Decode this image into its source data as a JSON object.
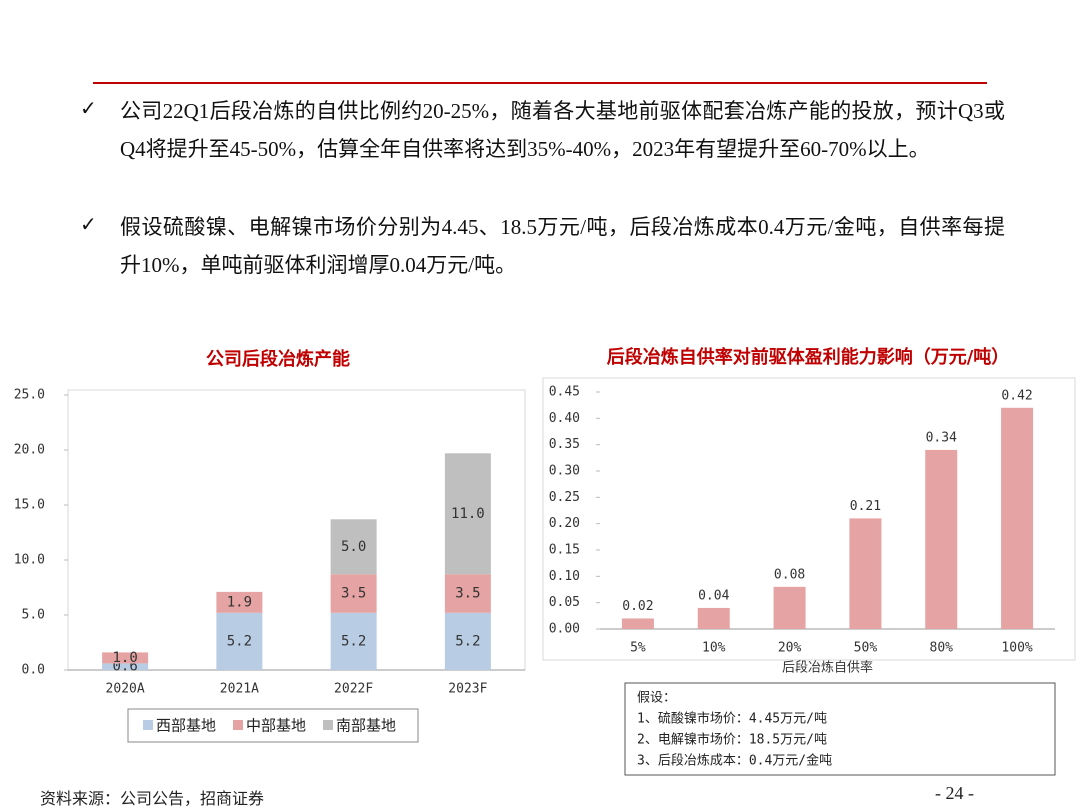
{
  "bullets": [
    "公司22Q1后段冶炼的自供比例约20-25%，随着各大基地前驱体配套冶炼产能的投放，预计Q3或Q4将提升至45-50%，估算全年自供率将达到35%-40%，2023年有望提升至60-70%以上。",
    "假设硫酸镍、电解镍市场价分别为4.45、18.5万元/吨，后段冶炼成本0.4万元/金吨，自供率每提升10%，单吨前驱体利润增厚0.04万元/吨。"
  ],
  "chart_data": [
    {
      "type": "stacked_bar",
      "title": "公司后段冶炼产能",
      "categories": [
        "2020A",
        "2021A",
        "2022F",
        "2023F"
      ],
      "series": [
        {
          "name": "西部基地",
          "color": "#b8cce4",
          "values": [
            0.6,
            5.2,
            5.2,
            5.2
          ],
          "value_labels": [
            "0.6",
            "5.2",
            "5.2",
            "5.2"
          ]
        },
        {
          "name": "中部基地",
          "color": "#e6a3a3",
          "values": [
            1.0,
            1.9,
            3.5,
            3.5
          ],
          "value_labels": [
            "1.0",
            "1.9",
            "3.5",
            "3.5"
          ]
        },
        {
          "name": "南部基地",
          "color": "#bfbfbf",
          "values": [
            null,
            null,
            5.0,
            11.0
          ],
          "value_labels": [
            null,
            null,
            "5.0",
            "11.0"
          ]
        }
      ],
      "ylim": [
        0,
        25
      ],
      "yticks": [
        {
          "value": 0,
          "label": "0.0"
        },
        {
          "value": 5,
          "label": "5.0"
        },
        {
          "value": 10,
          "label": "10.0"
        },
        {
          "value": 15,
          "label": "15.0"
        },
        {
          "value": 20,
          "label": "20.0"
        },
        {
          "value": 25,
          "label": "25.0"
        }
      ],
      "legend": "bottom"
    },
    {
      "type": "bar",
      "title": "后段冶炼自供率对前驱体盈利能力影响（万元/吨）",
      "categories": [
        "5%",
        "10%",
        "20%",
        "50%",
        "80%",
        "100%"
      ],
      "values": [
        0.02,
        0.04,
        0.08,
        0.21,
        0.34,
        0.42
      ],
      "color": "#e6a3a3",
      "x_label": "后段冶炼自供率",
      "ylim": [
        0,
        0.45
      ],
      "yticks": [
        {
          "value": 0,
          "label": "0.00"
        },
        {
          "value": 0.05,
          "label": "0.05"
        },
        {
          "value": 0.1,
          "label": "0.10"
        },
        {
          "value": 0.15,
          "label": "0.15"
        },
        {
          "value": 0.2,
          "label": "0.20"
        },
        {
          "value": 0.25,
          "label": "0.25"
        },
        {
          "value": 0.3,
          "label": "0.30"
        },
        {
          "value": 0.35,
          "label": "0.35"
        },
        {
          "value": 0.4,
          "label": "0.40"
        },
        {
          "value": 0.45,
          "label": "0.45"
        }
      ]
    }
  ],
  "note": {
    "title": "假设：",
    "lines": [
      "1、硫酸镍市场价：4.45万元/吨",
      "2、电解镍市场价：18.5万元/吨",
      "3、后段冶炼成本：0.4万元/金吨"
    ]
  },
  "source": "资料来源：公司公告，招商证券",
  "page_number": "- 24 -"
}
